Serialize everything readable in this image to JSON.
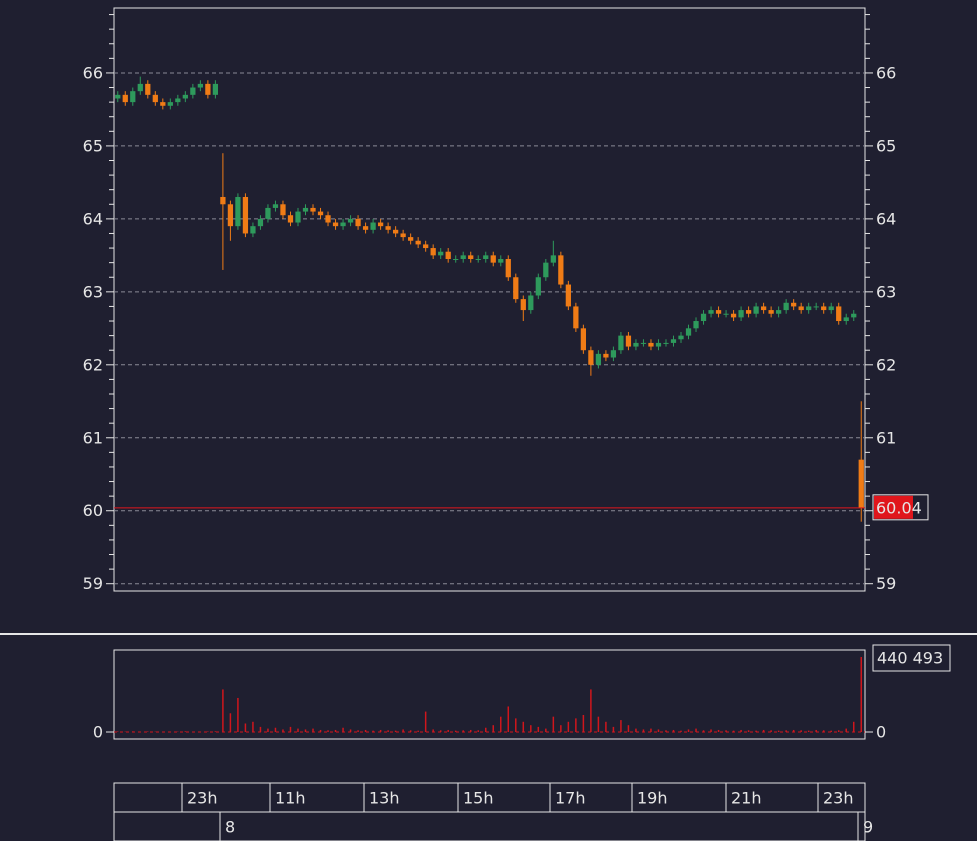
{
  "chart_data": [
    {
      "type": "candlestick",
      "ylim": [
        58.9,
        66.89
      ],
      "yticks": [
        59,
        60,
        61,
        62,
        63,
        64,
        65,
        66
      ],
      "minor_yticks": [
        59.2,
        59.4,
        59.6,
        59.8,
        60.2,
        60.4,
        60.6,
        60.8,
        61.2,
        61.4,
        61.6,
        61.8,
        62.2,
        62.4,
        62.6,
        62.8,
        63.2,
        63.4,
        63.6,
        63.8,
        64.2,
        64.4,
        64.6,
        64.8,
        65.2,
        65.4,
        65.6,
        65.8,
        66.2,
        66.4,
        66.6,
        66.8
      ],
      "grid": true,
      "up_color": "#2e9a5c",
      "down_color": "#f07c16",
      "open": [
        65.65,
        65.7,
        65.6,
        65.75,
        65.85,
        65.7,
        65.6,
        65.55,
        65.6,
        65.65,
        65.7,
        65.8,
        65.85,
        65.7,
        64.3,
        64.2,
        63.9,
        64.3,
        63.8,
        63.9,
        64.0,
        64.15,
        64.2,
        64.05,
        63.95,
        64.1,
        64.15,
        64.1,
        64.05,
        63.95,
        63.9,
        63.95,
        64.0,
        63.9,
        63.85,
        63.95,
        63.9,
        63.85,
        63.8,
        63.75,
        63.7,
        63.65,
        63.6,
        63.5,
        63.55,
        63.45,
        63.45,
        63.5,
        63.45,
        63.45,
        63.5,
        63.4,
        63.45,
        63.2,
        62.9,
        62.75,
        62.95,
        63.2,
        63.4,
        63.5,
        63.1,
        62.8,
        62.5,
        62.2,
        62.0,
        62.15,
        62.1,
        62.2,
        62.4,
        62.25,
        62.3,
        62.3,
        62.25,
        62.3,
        62.3,
        62.35,
        62.4,
        62.5,
        62.6,
        62.7,
        62.75,
        62.7,
        62.7,
        62.65,
        62.75,
        62.7,
        62.8,
        62.75,
        62.7,
        62.75,
        62.85,
        62.8,
        62.75,
        62.8,
        62.8,
        62.75,
        62.8,
        62.6,
        62.65,
        60.7
      ],
      "high": [
        65.75,
        65.75,
        65.8,
        65.95,
        65.9,
        65.75,
        65.65,
        65.65,
        65.7,
        65.75,
        65.85,
        65.9,
        65.9,
        65.9,
        64.9,
        64.25,
        64.35,
        64.35,
        63.95,
        64.05,
        64.2,
        64.25,
        64.25,
        64.1,
        64.15,
        64.2,
        64.2,
        64.15,
        64.1,
        64.0,
        64.0,
        64.05,
        64.05,
        63.95,
        64.0,
        64.0,
        63.95,
        63.9,
        63.85,
        63.8,
        63.75,
        63.7,
        63.65,
        63.6,
        63.6,
        63.5,
        63.55,
        63.55,
        63.5,
        63.55,
        63.55,
        63.5,
        63.5,
        63.25,
        62.95,
        63.0,
        63.25,
        63.45,
        63.7,
        63.55,
        63.15,
        62.85,
        62.55,
        62.25,
        62.2,
        62.2,
        62.25,
        62.45,
        62.45,
        62.35,
        62.35,
        62.35,
        62.35,
        62.35,
        62.4,
        62.45,
        62.55,
        62.65,
        62.75,
        62.8,
        62.8,
        62.75,
        62.75,
        62.8,
        62.8,
        62.85,
        62.85,
        62.8,
        62.8,
        62.9,
        62.9,
        62.85,
        62.85,
        62.85,
        62.85,
        62.85,
        62.85,
        62.7,
        62.75,
        61.5
      ],
      "low": [
        65.6,
        65.55,
        65.55,
        65.7,
        65.65,
        65.55,
        65.5,
        65.5,
        65.55,
        65.6,
        65.65,
        65.75,
        65.65,
        65.65,
        63.3,
        63.7,
        63.85,
        63.75,
        63.75,
        63.85,
        63.95,
        64.1,
        64.0,
        63.9,
        63.9,
        64.05,
        64.05,
        64.0,
        63.9,
        63.85,
        63.85,
        63.9,
        63.85,
        63.8,
        63.8,
        63.85,
        63.8,
        63.75,
        63.7,
        63.65,
        63.6,
        63.55,
        63.45,
        63.45,
        63.4,
        63.4,
        63.4,
        63.4,
        63.4,
        63.4,
        63.35,
        63.35,
        63.15,
        62.85,
        62.6,
        62.7,
        62.9,
        63.15,
        63.35,
        63.05,
        62.75,
        62.45,
        62.15,
        61.85,
        61.95,
        62.05,
        62.05,
        62.15,
        62.2,
        62.2,
        62.25,
        62.2,
        62.2,
        62.25,
        62.25,
        62.3,
        62.35,
        62.45,
        62.55,
        62.65,
        62.65,
        62.65,
        62.6,
        62.6,
        62.65,
        62.65,
        62.7,
        62.65,
        62.65,
        62.7,
        62.75,
        62.7,
        62.7,
        62.75,
        62.7,
        62.7,
        62.55,
        62.55,
        62.6,
        59.85
      ],
      "close": [
        65.7,
        65.6,
        65.75,
        65.85,
        65.7,
        65.6,
        65.55,
        65.6,
        65.65,
        65.7,
        65.8,
        65.85,
        65.7,
        65.85,
        64.2,
        63.9,
        64.3,
        63.8,
        63.9,
        64.0,
        64.15,
        64.2,
        64.05,
        63.95,
        64.1,
        64.15,
        64.1,
        64.05,
        63.95,
        63.9,
        63.95,
        64.0,
        63.9,
        63.85,
        63.95,
        63.9,
        63.85,
        63.8,
        63.75,
        63.7,
        63.65,
        63.6,
        63.5,
        63.55,
        63.45,
        63.45,
        63.5,
        63.45,
        63.45,
        63.5,
        63.4,
        63.45,
        63.2,
        62.9,
        62.75,
        62.95,
        63.2,
        63.4,
        63.5,
        63.1,
        62.8,
        62.5,
        62.2,
        62.0,
        62.15,
        62.1,
        62.2,
        62.4,
        62.25,
        62.3,
        62.3,
        62.25,
        62.3,
        62.3,
        62.35,
        62.4,
        62.5,
        62.6,
        62.7,
        62.75,
        62.7,
        62.7,
        62.65,
        62.75,
        62.7,
        62.8,
        62.75,
        62.7,
        62.75,
        62.85,
        62.8,
        62.75,
        62.8,
        62.8,
        62.75,
        62.8,
        62.6,
        62.65,
        62.7,
        60.04
      ],
      "last_price": {
        "value": 60.04,
        "label": "60.04"
      },
      "last_price_color": "#e0161c"
    },
    {
      "type": "bar",
      "ylim": [
        -41100,
        481600
      ],
      "yticks": [
        0
      ],
      "color": "#d0161c",
      "values": [
        3000,
        2000,
        4000,
        2000,
        3000,
        2000,
        2000,
        3000,
        2000,
        4000,
        3000,
        2000,
        3000,
        4000,
        250000,
        110000,
        200000,
        50000,
        60000,
        30000,
        20000,
        25000,
        15000,
        30000,
        20000,
        15000,
        20000,
        12000,
        10000,
        12000,
        25000,
        15000,
        10000,
        12000,
        8000,
        12000,
        10000,
        8000,
        15000,
        10000,
        8000,
        120000,
        15000,
        10000,
        12000,
        8000,
        10000,
        12000,
        10000,
        25000,
        40000,
        90000,
        150000,
        80000,
        60000,
        40000,
        30000,
        20000,
        90000,
        40000,
        60000,
        80000,
        100000,
        250000,
        90000,
        60000,
        30000,
        70000,
        40000,
        20000,
        15000,
        20000,
        15000,
        10000,
        12000,
        8000,
        15000,
        20000,
        10000,
        15000,
        12000,
        10000,
        8000,
        12000,
        10000,
        8000,
        12000,
        10000,
        8000,
        10000,
        12000,
        10000,
        8000,
        12000,
        10000,
        8000,
        10000,
        20000,
        60000,
        440493
      ],
      "max_label": {
        "value": 440493,
        "label": "440 493"
      }
    }
  ],
  "time_axis": {
    "hours": [
      "23h",
      "11h",
      "13h",
      "15h",
      "17h",
      "19h",
      "21h",
      "23h"
    ],
    "days": [
      "8",
      "9"
    ]
  }
}
